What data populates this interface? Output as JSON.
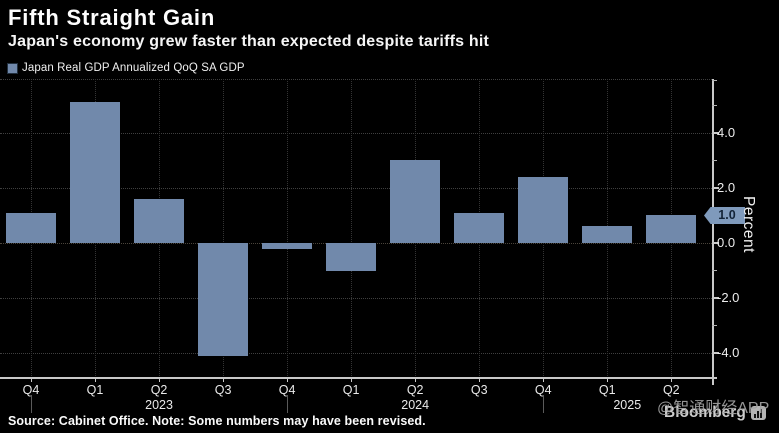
{
  "header": {
    "title": "Fifth Straight Gain",
    "subtitle": "Japan's economy grew faster than expected despite tariffs hit"
  },
  "legend": {
    "label": "Japan Real GDP Annualized QoQ SA GDP"
  },
  "chart_data": {
    "type": "bar",
    "series_name": "Japan Real GDP Annualized QoQ SA GDP",
    "categories": [
      "Q4",
      "Q1",
      "Q2",
      "Q3",
      "Q4",
      "Q1",
      "Q2",
      "Q3",
      "Q4",
      "Q1",
      "Q2"
    ],
    "values": [
      1.1,
      5.1,
      1.6,
      -4.1,
      -0.2,
      -1.0,
      3.0,
      1.1,
      2.4,
      0.6,
      1.0
    ],
    "year_markers": [
      {
        "label": "2023",
        "quarter_index": 2
      },
      {
        "label": "2024",
        "quarter_index": 6
      },
      {
        "label": "2025",
        "quarter_index": 9
      }
    ],
    "ylabel": "Percent",
    "yticks_major": [
      4.0,
      2.0,
      0.0,
      -2.0,
      -4.0
    ],
    "ylim": [
      -5,
      6
    ],
    "grid": true,
    "legend_position": "top-left",
    "last_value_badge": "1.0",
    "bar_color": "#7189ab",
    "badge_color": "#7f9abc",
    "background_color": "#000000"
  },
  "footer": {
    "source_note": "Source: Cabinet Office. Note: Some numbers may have been revised.",
    "logo_text": "Bloomberg",
    "watermark": "@智通财经APP"
  }
}
